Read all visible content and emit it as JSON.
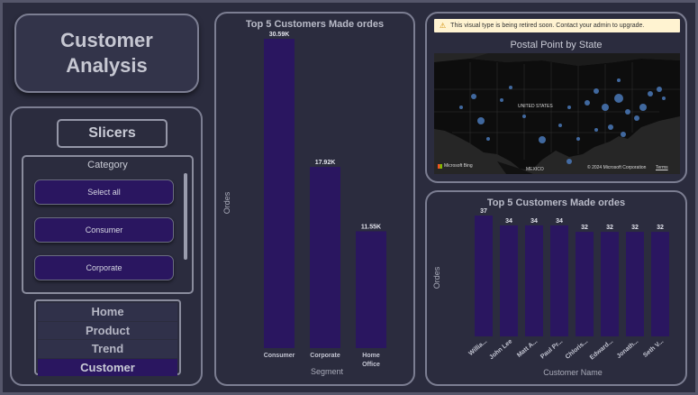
{
  "title": {
    "line1": "Customer",
    "line2": "Analysis"
  },
  "slicers": {
    "title": "Slicers",
    "category_title": "Category",
    "category_buttons": [
      "Select all",
      "Consumer",
      "Corporate"
    ]
  },
  "nav": {
    "items": [
      "Home",
      "Product",
      "Trend",
      "Customer"
    ],
    "active": "Customer"
  },
  "left_chart": {
    "title": "Top 5 Customers Made ordes",
    "ylabel": "Ordes",
    "xlabel": "Segment"
  },
  "right_chart": {
    "title": "Top 5 Customers Made ordes",
    "ylabel": "Ordes",
    "xlabel": "Customer Name"
  },
  "map": {
    "warning": "This visual type is being retired soon. Contact your admin to upgrade.",
    "title": "Postal Point by State",
    "country_label": "UNITED STATES",
    "mexico_label": "MEXICO",
    "bing_label": "Microsoft Bing",
    "copyright": "© 2024 Microsoft Corporation",
    "terms": "Terms"
  },
  "chart_data": [
    {
      "type": "bar",
      "title": "Top 5 Customers Made ordes",
      "xlabel": "Segment",
      "ylabel": "Ordes",
      "categories": [
        "Consumer",
        "Corporate",
        "Home Office"
      ],
      "values": [
        30590,
        17920,
        11550
      ],
      "data_labels": [
        "30.59K",
        "17.92K",
        "11.55K"
      ],
      "color": "#2a1660"
    },
    {
      "type": "bar",
      "title": "Top 5 Customers Made ordes",
      "xlabel": "Customer Name",
      "ylabel": "Ordes",
      "categories": [
        "Willia...",
        "John Lee",
        "Matt A...",
        "Paul Pr...",
        "Chloris...",
        "Edward...",
        "Jonath...",
        "Seth V..."
      ],
      "values": [
        37,
        34,
        34,
        34,
        32,
        32,
        32,
        32
      ],
      "color": "#2a1660"
    }
  ]
}
